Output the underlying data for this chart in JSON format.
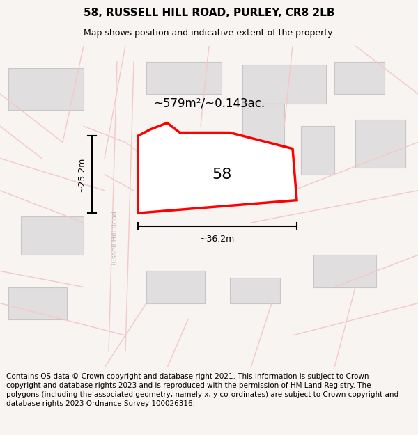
{
  "title": "58, RUSSELL HILL ROAD, PURLEY, CR8 2LB",
  "subtitle": "Map shows position and indicative extent of the property.",
  "area_label": "~579m²/~0.143ac.",
  "number_label": "58",
  "width_label": "~36.2m",
  "height_label": "~25.2m",
  "road_label": "Russell Hill Road",
  "footer": "Contains OS data © Crown copyright and database right 2021. This information is subject to Crown copyright and database rights 2023 and is reproduced with the permission of HM Land Registry. The polygons (including the associated geometry, namely x, y co-ordinates) are subject to Crown copyright and database rights 2023 Ordnance Survey 100026316.",
  "bg_color": "#f7f4f2",
  "map_bg": "#f7f4f2",
  "building_fill": "#e0dede",
  "building_edge": "#c8c6c6",
  "road_color": "#f5c8c8",
  "highlight_fill": "#ffffff",
  "highlight_edge": "#ff0000",
  "dim_line_color": "#000000",
  "footer_bg": "#ffffff",
  "title_fontsize": 11,
  "subtitle_fontsize": 9,
  "footer_fontsize": 7.5
}
